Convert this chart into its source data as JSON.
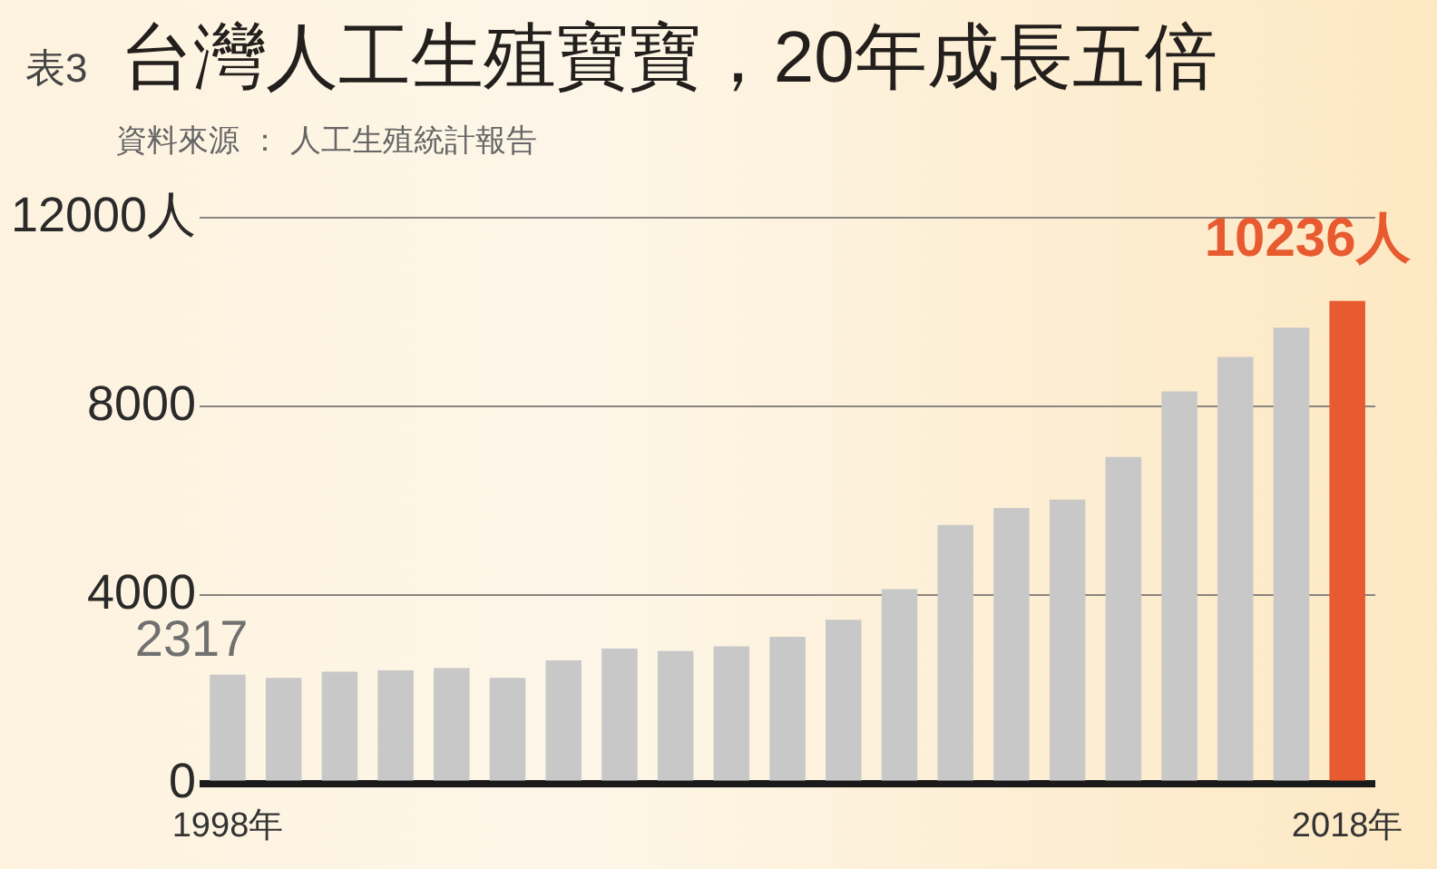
{
  "chart_data": {
    "type": "bar",
    "title": "表3 台灣人工生殖寶寶，20年成長五倍",
    "annotations": [
      "資料來源 ： 人工生殖統計報告"
    ],
    "categories": [
      "1998年",
      null,
      null,
      null,
      null,
      null,
      null,
      null,
      null,
      null,
      null,
      null,
      null,
      null,
      null,
      null,
      null,
      null,
      null,
      null,
      "2018年"
    ],
    "values": [
      2317,
      2250,
      2380,
      2410,
      2460,
      2250,
      2620,
      2870,
      2820,
      2920,
      3120,
      3480,
      4130,
      5490,
      5850,
      6030,
      6930,
      8320,
      9050,
      9670,
      10236
    ],
    "colors": [
      "#c8c8c8",
      "#c8c8c8",
      "#c8c8c8",
      "#c8c8c8",
      "#c8c8c8",
      "#c8c8c8",
      "#c8c8c8",
      "#c8c8c8",
      "#c8c8c8",
      "#c8c8c8",
      "#c8c8c8",
      "#c8c8c8",
      "#c8c8c8",
      "#c8c8c8",
      "#c8c8c8",
      "#c8c8c8",
      "#c8c8c8",
      "#c8c8c8",
      "#c8c8c8",
      "#c8c8c8",
      "#e85a30"
    ],
    "value_labels": [
      "2317",
      null,
      null,
      null,
      null,
      null,
      null,
      null,
      null,
      null,
      null,
      null,
      null,
      null,
      null,
      null,
      null,
      null,
      null,
      null,
      "10236人"
    ],
    "ylim": [
      0,
      12000
    ],
    "yticks": [
      0,
      4000,
      8000,
      {
        "value": 12000,
        "label": "12000人"
      }
    ],
    "grid": "y"
  }
}
